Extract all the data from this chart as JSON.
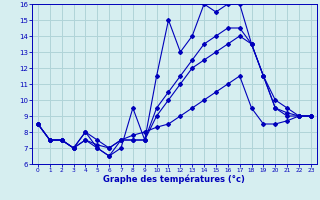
{
  "xlabel": "Graphe des températures (°c)",
  "xlim": [
    -0.5,
    23.5
  ],
  "ylim": [
    6,
    16
  ],
  "yticks": [
    6,
    7,
    8,
    9,
    10,
    11,
    12,
    13,
    14,
    15,
    16
  ],
  "xticks": [
    0,
    1,
    2,
    3,
    4,
    5,
    6,
    7,
    8,
    9,
    10,
    11,
    12,
    13,
    14,
    15,
    16,
    17,
    18,
    19,
    20,
    21,
    22,
    23
  ],
  "bg_color": "#d6eef0",
  "grid_color": "#b0d4d8",
  "line_color": "#0000bb",
  "line1_y": [
    8.5,
    7.5,
    7.5,
    7.0,
    8.0,
    7.0,
    6.5,
    7.0,
    9.5,
    7.5,
    11.5,
    15.0,
    13.0,
    14.0,
    16.0,
    15.5,
    16.0,
    16.0,
    13.5,
    11.5,
    9.5,
    9.0,
    9.0,
    9.0
  ],
  "line2_y": [
    8.5,
    7.5,
    7.5,
    7.0,
    8.0,
    7.5,
    7.0,
    7.5,
    7.5,
    7.5,
    9.5,
    10.5,
    11.5,
    12.5,
    13.5,
    14.0,
    14.5,
    14.5,
    13.5,
    11.5,
    10.0,
    9.5,
    9.0,
    9.0
  ],
  "line3_y": [
    8.5,
    7.5,
    7.5,
    7.0,
    7.5,
    7.0,
    6.5,
    7.5,
    7.5,
    7.5,
    9.0,
    10.0,
    11.0,
    12.0,
    12.5,
    13.0,
    13.5,
    14.0,
    13.5,
    11.5,
    9.5,
    9.2,
    9.0,
    9.0
  ],
  "line4_y": [
    8.5,
    7.5,
    7.5,
    7.0,
    7.5,
    7.2,
    7.0,
    7.5,
    7.8,
    8.0,
    8.3,
    8.5,
    9.0,
    9.5,
    10.0,
    10.5,
    11.0,
    11.5,
    9.5,
    8.5,
    8.5,
    8.7,
    9.0,
    9.0
  ]
}
